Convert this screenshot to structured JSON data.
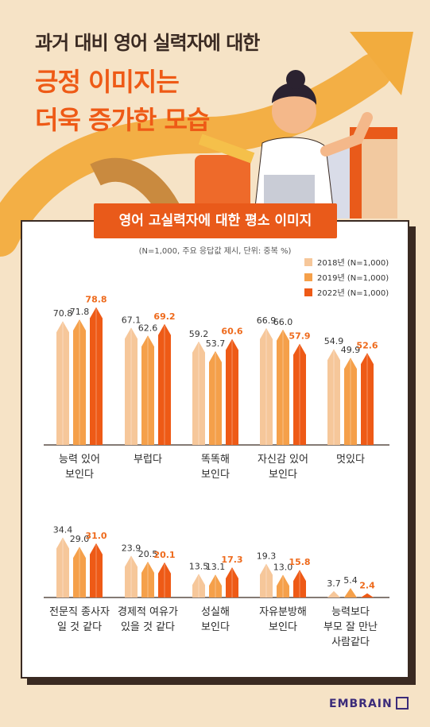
{
  "header": {
    "line1": "과거 대비 영어 실력자에 대한",
    "line2": "긍정 이미지는",
    "line3": "더욱 증가한 모습"
  },
  "banner": "영어 고실력자에 대한 평소 이미지",
  "subtitle": "(N=1,000, 주요 응답값 제시, 단위: 중복 %)",
  "brand": "EMBRAIN",
  "colors": {
    "s2018": "#f6c79a",
    "s2019": "#f5a04a",
    "s2022": "#ee5a16",
    "label2022": "#ee6a1c",
    "axis": "#3a2a22"
  },
  "chart_data": {
    "type": "bar",
    "series": [
      {
        "name": "2018년  (N=1,000)"
      },
      {
        "name": "2019년  (N=1,000)"
      },
      {
        "name": "2022년 (N=1,000)"
      }
    ],
    "groups": [
      {
        "label": [
          "능력 있어",
          "보인다"
        ],
        "values": [
          70.8,
          71.8,
          78.8
        ]
      },
      {
        "label": [
          "부럽다"
        ],
        "values": [
          67.1,
          62.6,
          69.2
        ]
      },
      {
        "label": [
          "똑똑해",
          "보인다"
        ],
        "values": [
          59.2,
          53.7,
          60.6
        ]
      },
      {
        "label": [
          "자신감 있어",
          "보인다"
        ],
        "values": [
          66.9,
          66.0,
          57.9
        ]
      },
      {
        "label": [
          "멋있다"
        ],
        "values": [
          54.9,
          49.9,
          52.6
        ]
      },
      {
        "label": [
          "전문직 종사자",
          "일 것 같다"
        ],
        "values": [
          34.4,
          29.0,
          31.0
        ]
      },
      {
        "label": [
          "경제적 여유가",
          "있을 것 같다"
        ],
        "values": [
          23.9,
          20.5,
          20.1
        ]
      },
      {
        "label": [
          "성실해",
          "보인다"
        ],
        "values": [
          13.5,
          13.1,
          17.3
        ]
      },
      {
        "label": [
          "자유분방해",
          "보인다"
        ],
        "values": [
          19.3,
          13.0,
          15.8
        ]
      },
      {
        "label": [
          "능력보다",
          "부모 잘 만난",
          "사람같다"
        ],
        "values": [
          3.7,
          5.4,
          2.4
        ]
      }
    ]
  }
}
